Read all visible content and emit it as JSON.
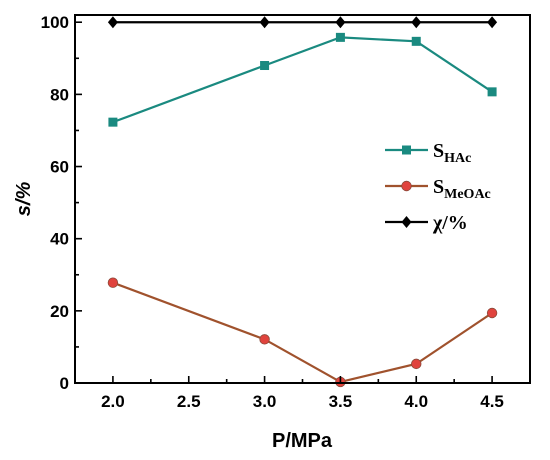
{
  "chart_data": {
    "type": "line",
    "xlabel": "P/MPa",
    "ylabel": "s/%",
    "x": [
      2.0,
      2.5,
      3.0,
      3.5,
      4.0,
      4.5
    ],
    "x_ticks": [
      "2.0",
      "2.5",
      "3.0",
      "3.5",
      "4.0",
      "4.5"
    ],
    "xlim": [
      1.75,
      4.75
    ],
    "y_ticks": [
      "0",
      "20",
      "40",
      "60",
      "80",
      "100"
    ],
    "ylim": [
      0,
      102
    ],
    "grid": false,
    "legend_position": "right",
    "series": [
      {
        "name": "S_HAc",
        "legend_main": "S",
        "legend_sub": "HAc",
        "color": "#1a8a80",
        "marker": "square",
        "points": [
          [
            2.0,
            72.3
          ],
          [
            3.0,
            88.0
          ],
          [
            3.5,
            95.8
          ],
          [
            4.0,
            94.7
          ],
          [
            4.5,
            80.7
          ]
        ]
      },
      {
        "name": "S_MeOAc",
        "legend_main": "S",
        "legend_sub": "MeOAc",
        "color": "#e0433d",
        "line_color": "#a0522d",
        "marker": "circle",
        "points": [
          [
            2.0,
            27.8
          ],
          [
            3.0,
            12.1
          ],
          [
            3.5,
            0.3
          ],
          [
            4.0,
            5.3
          ],
          [
            4.5,
            19.4
          ]
        ]
      },
      {
        "name": "χ/%",
        "legend_main": "χ/%",
        "legend_sub": "",
        "color": "#000000",
        "marker": "diamond",
        "points": [
          [
            2.0,
            100
          ],
          [
            3.0,
            100
          ],
          [
            3.5,
            100
          ],
          [
            4.0,
            100
          ],
          [
            4.5,
            100
          ]
        ]
      }
    ]
  }
}
